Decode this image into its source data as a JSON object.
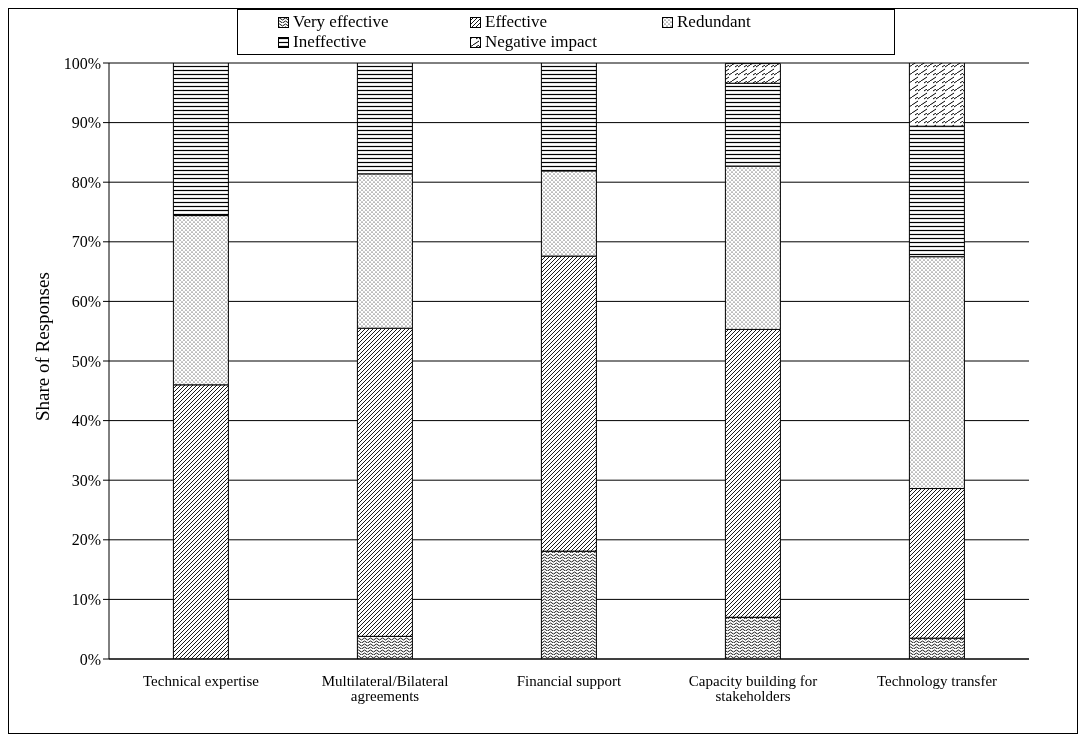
{
  "chart_data": {
    "type": "bar",
    "stacked": true,
    "ylabel": "Share of Responses",
    "categories": [
      "Technical expertise",
      "Multilateral/Bilateral agreements",
      "Financial support",
      "Capacity building for stakeholders",
      "Technology transfer"
    ],
    "series": [
      {
        "name": "Very effective",
        "color": "#000000",
        "values": [
          0,
          3.8,
          18.1,
          7.0,
          3.5
        ]
      },
      {
        "name": "Effective",
        "color": "#000000",
        "values": [
          46.0,
          51.7,
          49.5,
          48.3,
          25.1
        ]
      },
      {
        "name": "Redundant",
        "color": "#000000",
        "values": [
          28.4,
          25.9,
          14.3,
          27.4,
          38.9
        ]
      },
      {
        "name": "Ineffective",
        "color": "#000000",
        "values": [
          25.6,
          18.6,
          18.1,
          13.9,
          21.9
        ]
      },
      {
        "name": "Negative impact",
        "color": "#000000",
        "values": [
          0,
          0,
          0,
          3.3,
          10.6
        ]
      }
    ],
    "ylim": [
      0,
      100
    ],
    "yticks": [
      {
        "value": 0,
        "label": "0%"
      },
      {
        "value": 10,
        "label": "10%"
      },
      {
        "value": 20,
        "label": "20%"
      },
      {
        "value": 30,
        "label": "30%"
      },
      {
        "value": 40,
        "label": "40%"
      },
      {
        "value": 50,
        "label": "50%"
      },
      {
        "value": 60,
        "label": "60%"
      },
      {
        "value": 70,
        "label": "70%"
      },
      {
        "value": 80,
        "label": "80%"
      },
      {
        "value": 90,
        "label": "90%"
      },
      {
        "value": 100,
        "label": "100%"
      }
    ],
    "grid": "y",
    "legend": "top"
  }
}
